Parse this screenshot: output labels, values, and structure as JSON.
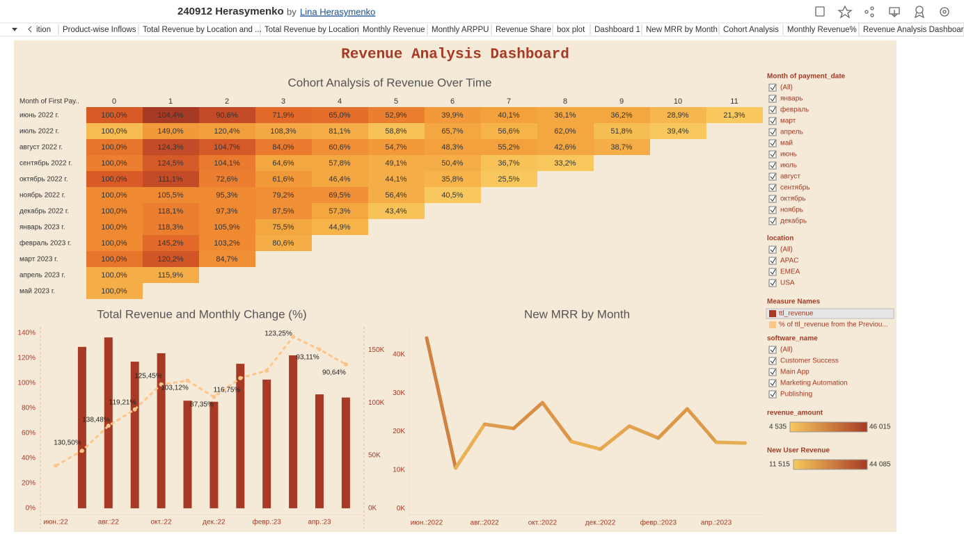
{
  "header": {
    "title": "240912 Herasymenko",
    "by": "by",
    "author": "Lina Herasymenko"
  },
  "tabs": [
    "ition",
    "Product-wise Inflows",
    "Total Revenue by Location and ...",
    "Total Revenue by Location",
    "Monthly Revenue",
    "Monthly ARPPU",
    "Revenue Share",
    "box plot",
    "Dashboard 1",
    "New MRR by Month",
    "Cohort Analysis",
    "Monthly Revenue%",
    "Revenue Analysis Dashboard"
  ],
  "active_tab": 12,
  "dashboard_title": "Revenue Analysis Dashboard",
  "cohort": {
    "title": "Cohort Analysis of Revenue Over Time",
    "row_header": "Month of First Pay..",
    "columns": [
      0,
      1,
      2,
      3,
      4,
      5,
      6,
      7,
      8,
      9,
      10,
      11
    ],
    "rows": [
      {
        "label": "июнь 2022 г.",
        "cells": [
          "100,0%",
          "104,4%",
          "90,6%",
          "71,9%",
          "65,0%",
          "52,9%",
          "39,9%",
          "40,1%",
          "36,1%",
          "36,2%",
          "28,9%",
          "21,3%"
        ],
        "colors": [
          "#d85a27",
          "#a63a24",
          "#c34a27",
          "#e2692a",
          "#e46d2b",
          "#ec7f2f",
          "#f29a3a",
          "#f3a13c",
          "#f4a740",
          "#f4a740",
          "#f6b84e",
          "#f9c85e"
        ]
      },
      {
        "label": "июль 2022 г.",
        "cells": [
          "100,0%",
          "149,0%",
          "120,4%",
          "108,3%",
          "81,1%",
          "58,8%",
          "65,7%",
          "56,6%",
          "62,0%",
          "51,8%",
          "39,4%"
        ],
        "colors": [
          "#f7bb52",
          "#f29a3a",
          "#f39e3c",
          "#f5a944",
          "#f5ad47",
          "#f7c358",
          "#f4a740",
          "#f6b44b",
          "#f4a740",
          "#f7bd55",
          "#f8c85e"
        ]
      },
      {
        "label": "август 2022 г.",
        "cells": [
          "100,0%",
          "124,3%",
          "104,7%",
          "84,0%",
          "60,6%",
          "54,7%",
          "48,3%",
          "55,2%",
          "42,6%",
          "38,7%"
        ],
        "colors": [
          "#e8752c",
          "#c44b27",
          "#d65a28",
          "#ea7a2e",
          "#f08f35",
          "#f29a3a",
          "#f3a13c",
          "#f3a13c",
          "#f4a740",
          "#f5ae47"
        ]
      },
      {
        "label": "сентябрь 2022 г.",
        "cells": [
          "100,0%",
          "124,5%",
          "104,1%",
          "64,6%",
          "57,8%",
          "49,1%",
          "50,4%",
          "36,7%",
          "33,2%"
        ],
        "colors": [
          "#ec7f2f",
          "#d55a28",
          "#ea7a2e",
          "#f4a740",
          "#f4a740",
          "#f5ae47",
          "#f5ae47",
          "#f7c358",
          "#f8c85e"
        ]
      },
      {
        "label": "октябрь 2022 г.",
        "cells": [
          "100,0%",
          "111,1%",
          "72,6%",
          "61,6%",
          "46,4%",
          "44,1%",
          "35,8%",
          "25,5%"
        ],
        "colors": [
          "#d85a27",
          "#c44b27",
          "#ec7f2f",
          "#f29a3a",
          "#f4a740",
          "#f5ae47",
          "#f6b44b",
          "#f8c85e"
        ]
      },
      {
        "label": "ноябрь 2022 г.",
        "cells": [
          "100,0%",
          "105,5%",
          "95,3%",
          "79,2%",
          "69,5%",
          "56,4%",
          "40,5%"
        ],
        "colors": [
          "#ef8a32",
          "#ef8a32",
          "#ef8a32",
          "#f08f35",
          "#f08f35",
          "#f5ae47",
          "#f8c85e"
        ]
      },
      {
        "label": "декабрь 2022 г.",
        "cells": [
          "100,0%",
          "118,1%",
          "97,3%",
          "87,5%",
          "57,3%",
          "43,4%"
        ],
        "colors": [
          "#ef8a32",
          "#ec7f2f",
          "#ef8a32",
          "#f08f35",
          "#f4a740",
          "#f7c358"
        ]
      },
      {
        "label": "январь 2023 г.",
        "cells": [
          "100,0%",
          "118,3%",
          "105,9%",
          "75,5%",
          "44,9%"
        ],
        "colors": [
          "#ef8a32",
          "#ec7f2f",
          "#ef8a32",
          "#f4a740",
          "#f6b44b"
        ]
      },
      {
        "label": "февраль 2023 г.",
        "cells": [
          "100,0%",
          "145,2%",
          "103,2%",
          "80,6%"
        ],
        "colors": [
          "#ef8a32",
          "#e2692a",
          "#ef8a32",
          "#f5ae47"
        ]
      },
      {
        "label": "март 2023 г.",
        "cells": [
          "100,0%",
          "120,2%",
          " 84,7%"
        ],
        "colors": [
          "#e8752c",
          "#d25527",
          "#f08f35"
        ]
      },
      {
        "label": "апрель 2023 г.",
        "cells": [
          "100,0%",
          "115,9%"
        ],
        "colors": [
          "#f5ae47",
          "#f5ae47"
        ]
      },
      {
        "label": "май 2023 г.",
        "cells": [
          "100,0%"
        ],
        "colors": [
          "#f5ae47"
        ]
      }
    ]
  },
  "chart_data": [
    {
      "type": "combo",
      "title": "Total Revenue and Monthly Change (%)",
      "categories": [
        "июн.:22",
        null,
        "авг.:22",
        null,
        "окт.:22",
        null,
        "дек.:22",
        null,
        "февр.:23",
        null,
        "апр.:23",
        null
      ],
      "series": [
        {
          "name": "ttl_revenue",
          "kind": "bar",
          "axis": "y2",
          "color": "#a63a24",
          "values": [
            null,
            153000,
            162000,
            139000,
            147000,
            102000,
            101000,
            137000,
            122000,
            145000,
            108000,
            105000
          ]
        },
        {
          "name": "% of ttl_revenue from the Previou...",
          "kind": "line",
          "color": "#fcc58a",
          "values": [
            34,
            46,
            66,
            79,
            99,
            102,
            89,
            104,
            110,
            137,
            127,
            115
          ]
        }
      ],
      "annotations": [
        "130,50%",
        "138,48%",
        "119,21%",
        "125,45%",
        "103,12%",
        "87,35%",
        "116,75%",
        "123,25%",
        "93,11%",
        "90,64%"
      ],
      "ylim": [
        -5,
        145
      ],
      "yticks": [
        {
          "value": 0,
          "label": "0%"
        },
        {
          "value": 20,
          "label": "20%"
        },
        {
          "value": 40,
          "label": "40%"
        },
        {
          "value": 60,
          "label": "60%"
        },
        {
          "value": 80,
          "label": "80%"
        },
        {
          "value": 100,
          "label": "100%"
        },
        {
          "value": 120,
          "label": "120%"
        },
        {
          "value": 140,
          "label": "140%"
        }
      ],
      "y2lim": [
        -6000,
        172000
      ],
      "y2ticks": [
        {
          "value": 0,
          "label": "0K"
        },
        {
          "value": 50000,
          "label": "50K"
        },
        {
          "value": 100000,
          "label": "100K"
        },
        {
          "value": 150000,
          "label": "150K"
        }
      ]
    },
    {
      "type": "line",
      "title": "New MRR by Month",
      "categories": [
        "июн.:2022",
        null,
        "авг.:2022",
        null,
        "окт.:2022",
        null,
        "дек.:2022",
        null,
        "февр.:2023",
        null,
        "апр.:2023",
        null
      ],
      "values": [
        44300,
        10500,
        21900,
        20800,
        27500,
        17400,
        15400,
        21400,
        18300,
        25900,
        17200,
        17000
      ],
      "colors": [
        "#f8c95e",
        "#a63a24"
      ],
      "ylim": [
        -1600,
        47200
      ],
      "yticks": [
        {
          "value": 0,
          "label": "0K"
        },
        {
          "value": 10000,
          "label": "10K"
        },
        {
          "value": 20000,
          "label": "20K"
        },
        {
          "value": 30000,
          "label": "30K"
        },
        {
          "value": 40000,
          "label": "40K"
        }
      ]
    }
  ],
  "filters": [
    {
      "title": "Month of payment_date",
      "items": [
        "(All)",
        "январь",
        "февраль",
        "март",
        "апрель",
        "май",
        "июнь",
        "июль",
        "август",
        "сентябрь",
        "октябрь",
        "ноябрь",
        "декабрь"
      ]
    },
    {
      "title": "location",
      "items": [
        "(All)",
        "APAC",
        "EMEA",
        "USA"
      ]
    },
    {
      "title": "software_name",
      "items": [
        "(All)",
        "Customer Success",
        "Main App",
        "Marketing Automation",
        "Publishing"
      ]
    }
  ],
  "measure_legend_title": "Measure Names",
  "color_legends": [
    {
      "title": "revenue_amount",
      "min": "4 535",
      "max": "46 015",
      "colors": [
        "#f8c95e",
        "#a63a24"
      ]
    },
    {
      "title": "New User Revenue",
      "min": "11 515",
      "max": "44 085",
      "colors": [
        "#f8c95e",
        "#a63a24"
      ]
    }
  ]
}
